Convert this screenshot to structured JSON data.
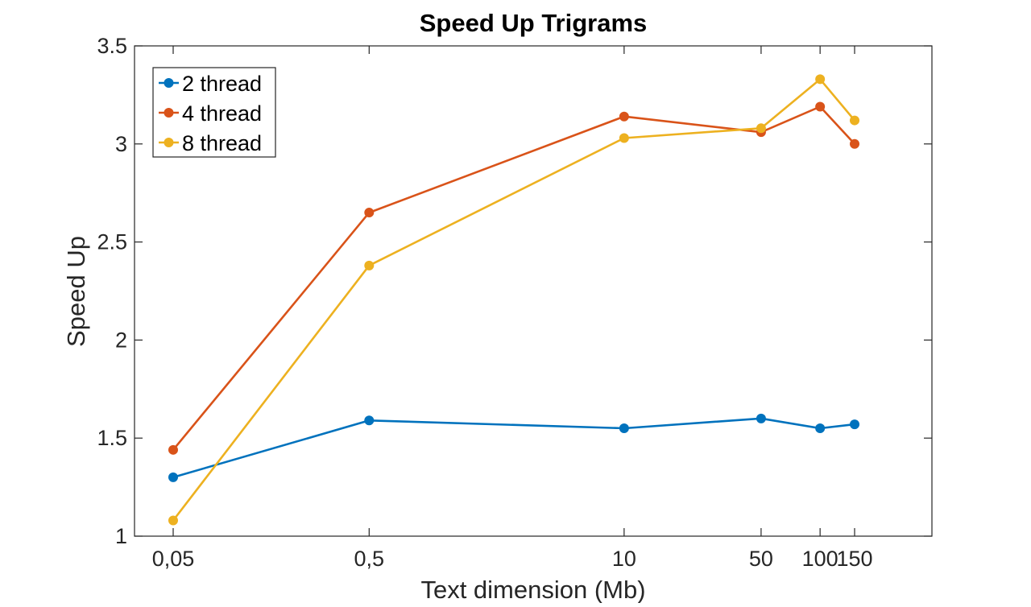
{
  "chart_data": {
    "type": "line",
    "title": "Speed Up Trigrams",
    "xlabel": "Text dimension (Mb)",
    "ylabel": "Speed Up",
    "x_scale": "log",
    "x": [
      0.05,
      0.5,
      10,
      50,
      100,
      150
    ],
    "x_tick_labels": [
      "0,05",
      "0,5",
      "10",
      "50",
      "100",
      "150"
    ],
    "ylim": [
      1,
      3.5
    ],
    "y_ticks": [
      1,
      1.5,
      2,
      2.5,
      3,
      3.5
    ],
    "y_tick_labels": [
      "1",
      "1.5",
      "2",
      "2.5",
      "3",
      "3.5"
    ],
    "grid": false,
    "legend_position": "top-left",
    "series": [
      {
        "name": "2 thread",
        "color": "#0072BD",
        "values": [
          1.3,
          1.59,
          1.55,
          1.6,
          1.55,
          1.57
        ]
      },
      {
        "name": "4 thread",
        "color": "#D95319",
        "values": [
          1.44,
          2.65,
          3.14,
          3.06,
          3.19,
          3.0
        ]
      },
      {
        "name": "8 thread",
        "color": "#EDB120",
        "values": [
          1.08,
          2.38,
          3.03,
          3.08,
          3.33,
          3.12
        ]
      }
    ]
  }
}
